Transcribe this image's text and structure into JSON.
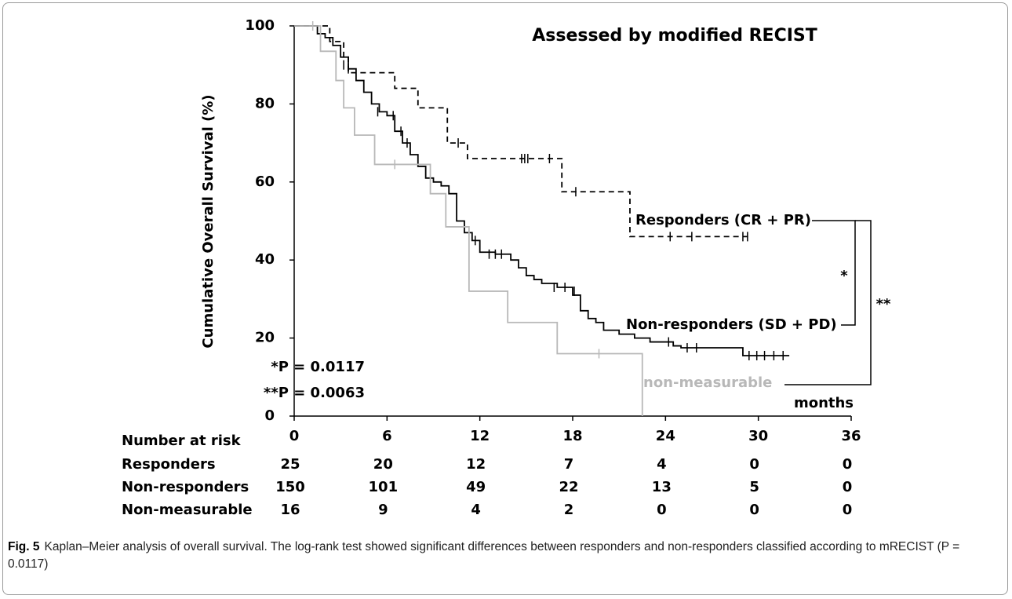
{
  "chart_data": {
    "type": "line",
    "step": "post",
    "title": "Assessed by modified RECIST",
    "y_label": "Cumulative Overall Survival (%)",
    "x_label": "months",
    "xlim": [
      0,
      36
    ],
    "xticks": [
      0,
      6,
      12,
      18,
      24,
      30,
      36
    ],
    "ylim": [
      0,
      100
    ],
    "yticks": [
      0,
      20,
      40,
      60,
      80,
      100
    ],
    "series": [
      {
        "name": "Responders (CR + PR)",
        "color": "#000000",
        "style": "dashed",
        "x": [
          0,
          2.3,
          3.2,
          3.5,
          6.5,
          8,
          9.9,
          11.2,
          17.3,
          21.7,
          29.5
        ],
        "values": [
          100,
          96,
          92,
          88,
          84,
          79,
          70,
          66,
          57.5,
          46,
          46
        ],
        "censored_x": [
          10.6,
          14.7,
          14.9,
          15.1,
          16.5,
          18.2,
          24.3,
          25.7,
          29,
          29.3
        ],
        "censored_y": [
          70,
          66,
          66,
          66,
          66,
          57.5,
          46,
          46,
          46,
          46
        ]
      },
      {
        "name": "Non-responders (SD + PD)",
        "color": "#000000",
        "style": "solid",
        "x": [
          0,
          1.5,
          2,
          2.5,
          3,
          3.5,
          4,
          4.5,
          5,
          5.5,
          6,
          6.5,
          7,
          7.5,
          8,
          8.5,
          9,
          9.5,
          10,
          10.5,
          11,
          11.5,
          12,
          13,
          14,
          14.5,
          15,
          15.5,
          16,
          17,
          18,
          18.5,
          19,
          19.5,
          20,
          21,
          22,
          23,
          24.5,
          25,
          29,
          32
        ],
        "values": [
          100,
          98,
          97,
          95,
          92,
          89,
          86,
          83,
          80,
          78,
          77,
          73,
          70,
          67,
          64,
          61,
          60,
          59,
          57,
          50,
          47,
          45,
          42,
          41.5,
          40,
          38,
          36,
          35,
          34,
          33,
          31,
          27,
          25,
          24,
          22,
          21,
          20,
          19,
          18,
          17.5,
          15.5,
          15.5
        ],
        "censored_x": [
          3.2,
          3.5,
          5.4,
          6.4,
          6.9,
          7.3,
          11.7,
          12.6,
          13,
          13.4,
          16.8,
          17.5,
          18.1,
          24.2,
          25.4,
          26,
          29.4,
          29.9,
          30.4,
          31,
          31.6
        ],
        "censored_y": [
          90,
          89,
          78,
          77,
          73,
          70,
          45,
          41.5,
          41.5,
          41.5,
          33,
          33,
          32,
          19,
          17.5,
          17.5,
          15.5,
          15.5,
          15.5,
          15.5,
          15.5
        ]
      },
      {
        "name": "non-measurable",
        "color": "#b8b8b8",
        "style": "solid",
        "x": [
          0,
          1.7,
          2.7,
          3.2,
          3.9,
          5.2,
          8.8,
          9.8,
          11.3,
          13.8,
          17,
          22.5
        ],
        "values": [
          100,
          93.5,
          86,
          79,
          72,
          64.5,
          57,
          48.5,
          32,
          24,
          16,
          0
        ],
        "censored_x": [
          1.2,
          6.5,
          19.7
        ],
        "censored_y": [
          100,
          64.5,
          16
        ]
      }
    ],
    "annotations": {
      "single": "*",
      "double": "**",
      "p1": "*P = 0.0117",
      "p2": "**P = 0.0063"
    },
    "risk_table": {
      "title": "Number at risk",
      "rows": [
        {
          "name": "Responders",
          "values": [
            25,
            20,
            12,
            7,
            4,
            0,
            0
          ]
        },
        {
          "name": "Non-responders",
          "values": [
            150,
            101,
            49,
            22,
            13,
            5,
            0
          ]
        },
        {
          "name": "Non-measurable",
          "values": [
            16,
            9,
            4,
            2,
            0,
            0,
            0
          ]
        }
      ]
    }
  },
  "caption": {
    "label": "Fig. 5",
    "text": "Kaplan–Meier analysis of overall survival. The log-rank test showed significant differences between responders and non-responders classified according to mRECIST (P = 0.0117)"
  }
}
